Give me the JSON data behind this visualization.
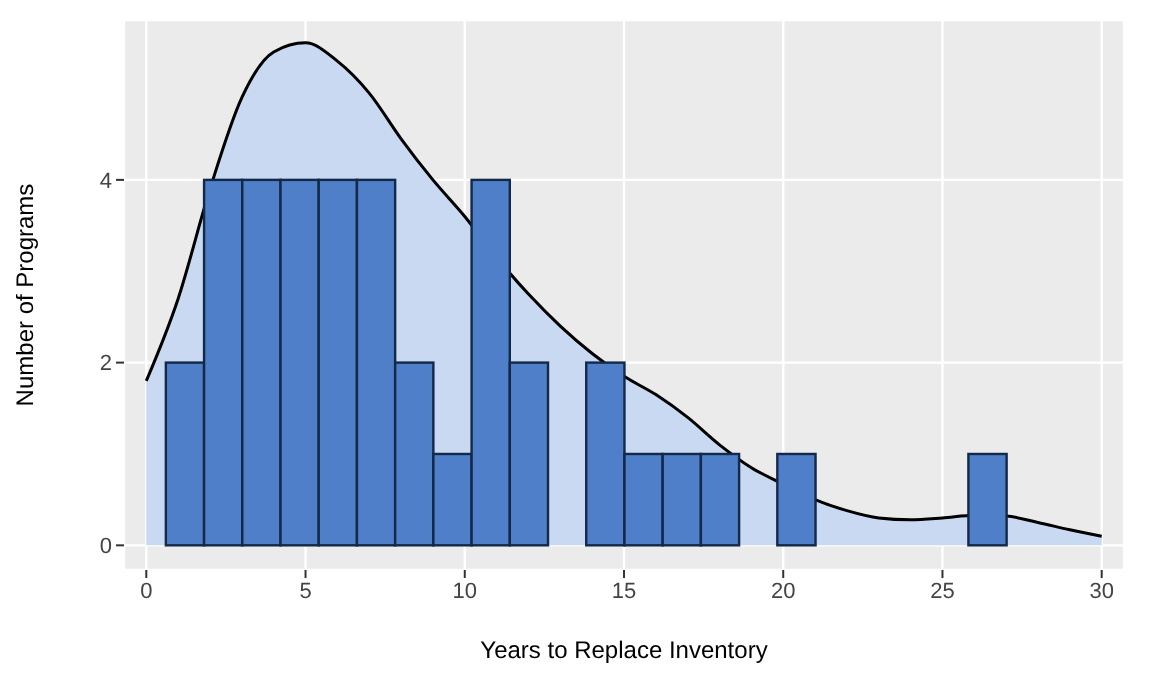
{
  "chart_data": {
    "type": "histogram",
    "xlabel": "Years to Replace Inventory",
    "ylabel": "Number of Programs",
    "xlim": [
      -0.7,
      30.7
    ],
    "xticks": [
      0,
      5,
      10,
      15,
      20,
      25,
      30
    ],
    "ylim": [
      -0.27,
      5.75
    ],
    "yticks": [
      0,
      2,
      4
    ],
    "grid": true,
    "series": [
      {
        "type": "area",
        "color": "#c9d9f2",
        "x": [
          0,
          1,
          2,
          3,
          4,
          5,
          6,
          7,
          8,
          9,
          10,
          11,
          12,
          13,
          14,
          15,
          16,
          17,
          18,
          19,
          20,
          21,
          22,
          23,
          24,
          25,
          26,
          27,
          28,
          29,
          30
        ],
        "values": [
          1.8,
          2.7,
          3.9,
          4.9,
          5.4,
          5.5,
          5.3,
          4.95,
          4.45,
          4.0,
          3.6,
          3.15,
          2.75,
          2.4,
          2.1,
          1.85,
          1.65,
          1.4,
          1.1,
          0.85,
          0.67,
          0.5,
          0.38,
          0.3,
          0.28,
          0.3,
          0.33,
          0.32,
          0.25,
          0.17,
          0.1
        ]
      },
      {
        "color": "#4f7fc8",
        "bins": [
          0.6,
          1.8,
          3.0,
          4.2,
          5.4,
          6.6,
          7.8,
          9.0,
          10.2,
          11.4,
          12.6,
          13.8,
          15.0,
          16.2,
          17.4,
          18.6,
          19.8,
          21.0,
          22.2,
          23.4,
          24.6,
          25.8,
          27.0,
          28.2,
          29.4
        ],
        "values": [
          2,
          4,
          4,
          4,
          4,
          4,
          2,
          1,
          4,
          2,
          0,
          2,
          1,
          1,
          1,
          0,
          1,
          0,
          0,
          0,
          0,
          1,
          0,
          0
        ]
      }
    ]
  }
}
